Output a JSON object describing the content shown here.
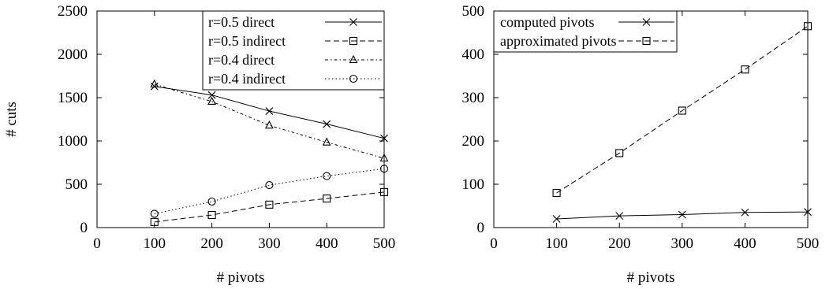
{
  "chart_data": [
    {
      "type": "line",
      "xlabel": "# pivots",
      "ylabel": "# cuts",
      "xlim": [
        0,
        500
      ],
      "ylim": [
        0,
        2500
      ],
      "xticks": [
        0,
        100,
        200,
        300,
        400,
        500
      ],
      "yticks": [
        0,
        500,
        1000,
        1500,
        2000,
        2500
      ],
      "grid": false,
      "legend_position": "top-right",
      "x": [
        100,
        200,
        300,
        400,
        500
      ],
      "series": [
        {
          "name": "r=0.5 direct",
          "values": [
            1630,
            1530,
            1345,
            1195,
            1030
          ],
          "marker": "x",
          "dash": "solid"
        },
        {
          "name": "r=0.5 indirect",
          "values": [
            65,
            145,
            265,
            335,
            410
          ],
          "marker": "square",
          "dash": "dashed"
        },
        {
          "name": "r=0.4 direct",
          "values": [
            1655,
            1455,
            1180,
            985,
            800
          ],
          "marker": "triangle",
          "dash": "dashdot"
        },
        {
          "name": "r=0.4 indirect",
          "values": [
            160,
            300,
            490,
            595,
            680
          ],
          "marker": "circle",
          "dash": "dotted"
        }
      ]
    },
    {
      "type": "line",
      "xlabel": "# pivots",
      "ylabel": "",
      "xlim": [
        0,
        500
      ],
      "ylim": [
        0,
        500
      ],
      "xticks": [
        0,
        100,
        200,
        300,
        400,
        500
      ],
      "yticks": [
        0,
        100,
        200,
        300,
        400,
        500
      ],
      "grid": false,
      "legend_position": "top-left",
      "x": [
        100,
        200,
        300,
        400,
        500
      ],
      "series": [
        {
          "name": "computed pivots",
          "values": [
            20,
            27,
            30,
            35,
            36
          ],
          "marker": "x",
          "dash": "solid"
        },
        {
          "name": "approximated pivots",
          "values": [
            80,
            172,
            270,
            365,
            465
          ],
          "marker": "square",
          "dash": "dashed"
        }
      ]
    }
  ]
}
